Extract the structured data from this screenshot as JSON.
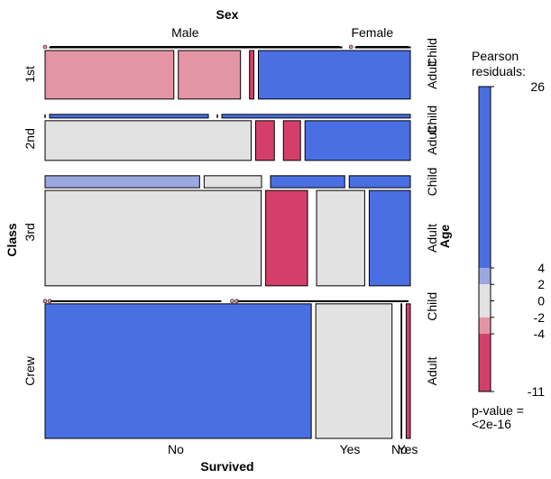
{
  "chart_data": {
    "type": "mosaic",
    "variables": {
      "sex": {
        "name": "Sex",
        "levels": [
          "Male",
          "Female"
        ]
      },
      "class": {
        "name": "Class",
        "levels": [
          "1st",
          "2nd",
          "3rd",
          "Crew"
        ]
      },
      "age": {
        "name": "Age",
        "levels": [
          "Child",
          "Adult"
        ]
      },
      "survived": {
        "name": "Survived",
        "levels": [
          "No",
          "Yes"
        ]
      }
    },
    "cells": [
      {
        "class": "1st",
        "age": "Child",
        "sex": "Male",
        "survived": "No",
        "count": 0,
        "shade": "pos_strong"
      },
      {
        "class": "1st",
        "age": "Child",
        "sex": "Male",
        "survived": "Yes",
        "count": 5,
        "shade": "pos_strong"
      },
      {
        "class": "1st",
        "age": "Child",
        "sex": "Female",
        "survived": "No",
        "count": 0,
        "shade": "pos_strong"
      },
      {
        "class": "1st",
        "age": "Child",
        "sex": "Female",
        "survived": "Yes",
        "count": 1,
        "shade": "pos_strong"
      },
      {
        "class": "1st",
        "age": "Adult",
        "sex": "Male",
        "survived": "No",
        "count": 118,
        "shade": "neg_mid"
      },
      {
        "class": "1st",
        "age": "Adult",
        "sex": "Male",
        "survived": "Yes",
        "count": 57,
        "shade": "neg_mid"
      },
      {
        "class": "1st",
        "age": "Adult",
        "sex": "Female",
        "survived": "No",
        "count": 4,
        "shade": "neg_strong"
      },
      {
        "class": "1st",
        "age": "Adult",
        "sex": "Female",
        "survived": "Yes",
        "count": 140,
        "shade": "pos_strong"
      },
      {
        "class": "2nd",
        "age": "Child",
        "sex": "Male",
        "survived": "No",
        "count": 0,
        "shade": "pos_strong"
      },
      {
        "class": "2nd",
        "age": "Child",
        "sex": "Male",
        "survived": "Yes",
        "count": 11,
        "shade": "pos_strong"
      },
      {
        "class": "2nd",
        "age": "Child",
        "sex": "Female",
        "survived": "No",
        "count": 0,
        "shade": "pos_strong"
      },
      {
        "class": "2nd",
        "age": "Child",
        "sex": "Female",
        "survived": "Yes",
        "count": 13,
        "shade": "pos_strong"
      },
      {
        "class": "2nd",
        "age": "Adult",
        "sex": "Male",
        "survived": "No",
        "count": 154,
        "shade": "neutral"
      },
      {
        "class": "2nd",
        "age": "Adult",
        "sex": "Male",
        "survived": "Yes",
        "count": 14,
        "shade": "neg_strong"
      },
      {
        "class": "2nd",
        "age": "Adult",
        "sex": "Female",
        "survived": "No",
        "count": 13,
        "shade": "neg_strong"
      },
      {
        "class": "2nd",
        "age": "Adult",
        "sex": "Female",
        "survived": "Yes",
        "count": 80,
        "shade": "pos_strong"
      },
      {
        "class": "3rd",
        "age": "Child",
        "sex": "Male",
        "survived": "No",
        "count": 35,
        "shade": "pos_light"
      },
      {
        "class": "3rd",
        "age": "Child",
        "sex": "Male",
        "survived": "Yes",
        "count": 13,
        "shade": "neutral"
      },
      {
        "class": "3rd",
        "age": "Child",
        "sex": "Female",
        "survived": "No",
        "count": 17,
        "shade": "pos_strong"
      },
      {
        "class": "3rd",
        "age": "Child",
        "sex": "Female",
        "survived": "Yes",
        "count": 14,
        "shade": "pos_strong"
      },
      {
        "class": "3rd",
        "age": "Adult",
        "sex": "Male",
        "survived": "No",
        "count": 387,
        "shade": "neutral"
      },
      {
        "class": "3rd",
        "age": "Adult",
        "sex": "Male",
        "survived": "Yes",
        "count": 75,
        "shade": "neg_strong"
      },
      {
        "class": "3rd",
        "age": "Adult",
        "sex": "Female",
        "survived": "No",
        "count": 89,
        "shade": "neutral"
      },
      {
        "class": "3rd",
        "age": "Adult",
        "sex": "Female",
        "survived": "Yes",
        "count": 76,
        "shade": "pos_strong"
      },
      {
        "class": "Crew",
        "age": "Child",
        "sex": "Male",
        "survived": "No",
        "count": 0,
        "shade": "neutral"
      },
      {
        "class": "Crew",
        "age": "Child",
        "sex": "Male",
        "survived": "Yes",
        "count": 0,
        "shade": "neutral"
      },
      {
        "class": "Crew",
        "age": "Child",
        "sex": "Female",
        "survived": "No",
        "count": 0,
        "shade": "neutral"
      },
      {
        "class": "Crew",
        "age": "Child",
        "sex": "Female",
        "survived": "Yes",
        "count": 0,
        "shade": "neutral"
      },
      {
        "class": "Crew",
        "age": "Adult",
        "sex": "Male",
        "survived": "No",
        "count": 670,
        "shade": "pos_strong"
      },
      {
        "class": "Crew",
        "age": "Adult",
        "sex": "Male",
        "survived": "Yes",
        "count": 192,
        "shade": "neutral"
      },
      {
        "class": "Crew",
        "age": "Adult",
        "sex": "Female",
        "survived": "No",
        "count": 3,
        "shade": "neutral"
      },
      {
        "class": "Crew",
        "age": "Adult",
        "sex": "Female",
        "survived": "Yes",
        "count": 20,
        "shade": "neg_strong"
      }
    ],
    "shade_colors": {
      "pos_strong": "#4a6fe3",
      "pos_light": "#9ca7e0",
      "neutral": "#e2e2e2",
      "neg_light": "#e495a5",
      "neg_mid": "#e495a5",
      "neg_strong": "#d33f6a"
    },
    "legend": {
      "title_line1": "Pearson",
      "title_line2": "residuals:",
      "range": [
        -11,
        26
      ],
      "ticks": [
        26,
        4,
        2,
        0,
        -2,
        -4,
        -11
      ],
      "tick_labels": [
        "26",
        "4",
        "2",
        "0",
        "-2",
        "-4",
        "-11"
      ],
      "p_value_line1": "p-value =",
      "p_value_line2": "<2e-16"
    }
  }
}
